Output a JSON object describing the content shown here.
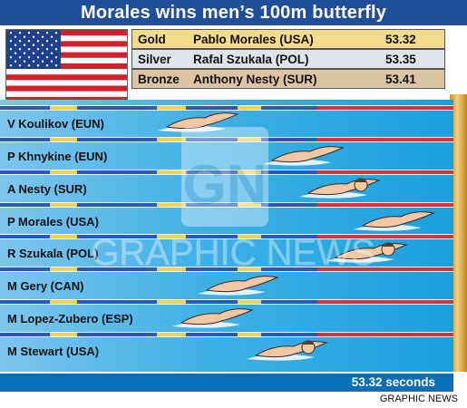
{
  "title": "Morales wins men’s 100m butterfly",
  "flag_icon": "usa-flag-icon",
  "medals": [
    {
      "medal": "Gold",
      "name": "Pablo Morales (USA)",
      "time": "53.32",
      "color": "#f2dc8c"
    },
    {
      "medal": "Silver",
      "name": "Rafal Szukala (POL)",
      "time": "53.35",
      "color": "#dfe3ea"
    },
    {
      "medal": "Bronze",
      "name": "Anthony Nesty (SUR)",
      "time": "53.41",
      "color": "#dcc4a2"
    }
  ],
  "lanes": [
    "V Koulikov (EUN)",
    "P Khnykine (EUN)",
    "A Nesty (SUR)",
    "P Morales (USA)",
    "R Szukala (POL)",
    "M Gery (CAN)",
    "M Lopez-Zubero (ESP)",
    "M Stewart (USA)"
  ],
  "winning_time": "53.32 seconds",
  "watermark": {
    "logo": "GN",
    "text": "GRAPHIC NEWS"
  },
  "credit": "GRAPHIC NEWS",
  "colors": {
    "title_bar": "#1f4e9a",
    "pool": "#3fb0e6",
    "rope_red": "#d9303a",
    "rope_blue": "#2a58b8",
    "rope_yellow": "#f5d04a"
  }
}
